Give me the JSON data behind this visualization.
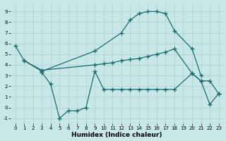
{
  "bg_color": "#c8e8e8",
  "grid_color": "#b0d0d0",
  "line_color": "#1a6b6b",
  "line_width": 0.9,
  "marker": "+",
  "markersize": 4,
  "markerwidth": 1.0,
  "xlabel": "Humidex (Indice chaleur)",
  "xlabel_fontsize": 6.5,
  "ylim": [
    -1.5,
    9.8
  ],
  "xlim": [
    -0.5,
    23.5
  ],
  "yticks": [
    -1,
    0,
    1,
    2,
    3,
    4,
    5,
    6,
    7,
    8,
    9
  ],
  "xticks": [
    0,
    1,
    2,
    3,
    4,
    5,
    6,
    7,
    8,
    9,
    10,
    11,
    12,
    13,
    14,
    15,
    16,
    17,
    18,
    19,
    20,
    21,
    22,
    23
  ],
  "tick_fontsize": 5.0,
  "curve1_x": [
    0,
    1,
    3,
    9,
    12,
    13,
    14,
    15,
    16,
    17,
    18,
    20,
    21
  ],
  "curve1_y": [
    5.8,
    4.4,
    3.4,
    5.3,
    7.0,
    8.2,
    8.8,
    9.0,
    9.0,
    8.8,
    7.2,
    5.5,
    3.0
  ],
  "curve2_x": [
    1,
    3,
    9,
    10,
    11,
    12,
    13,
    14,
    15,
    16,
    17,
    18,
    20,
    21,
    22,
    23
  ],
  "curve2_y": [
    4.4,
    3.5,
    4.0,
    4.1,
    4.2,
    4.4,
    4.5,
    4.6,
    4.8,
    5.0,
    5.2,
    5.5,
    3.2,
    2.5,
    2.5,
    1.3
  ],
  "curve3_x": [
    3,
    4,
    5,
    6,
    7,
    8,
    9,
    10,
    11,
    12,
    13,
    14,
    15,
    16,
    17,
    18,
    20,
    21,
    22,
    23
  ],
  "curve3_y": [
    3.3,
    2.2,
    -1.0,
    -0.3,
    -0.3,
    0.0,
    3.4,
    1.7,
    1.7,
    1.7,
    1.7,
    1.7,
    1.7,
    1.7,
    1.7,
    1.7,
    3.2,
    2.5,
    0.3,
    1.3
  ]
}
